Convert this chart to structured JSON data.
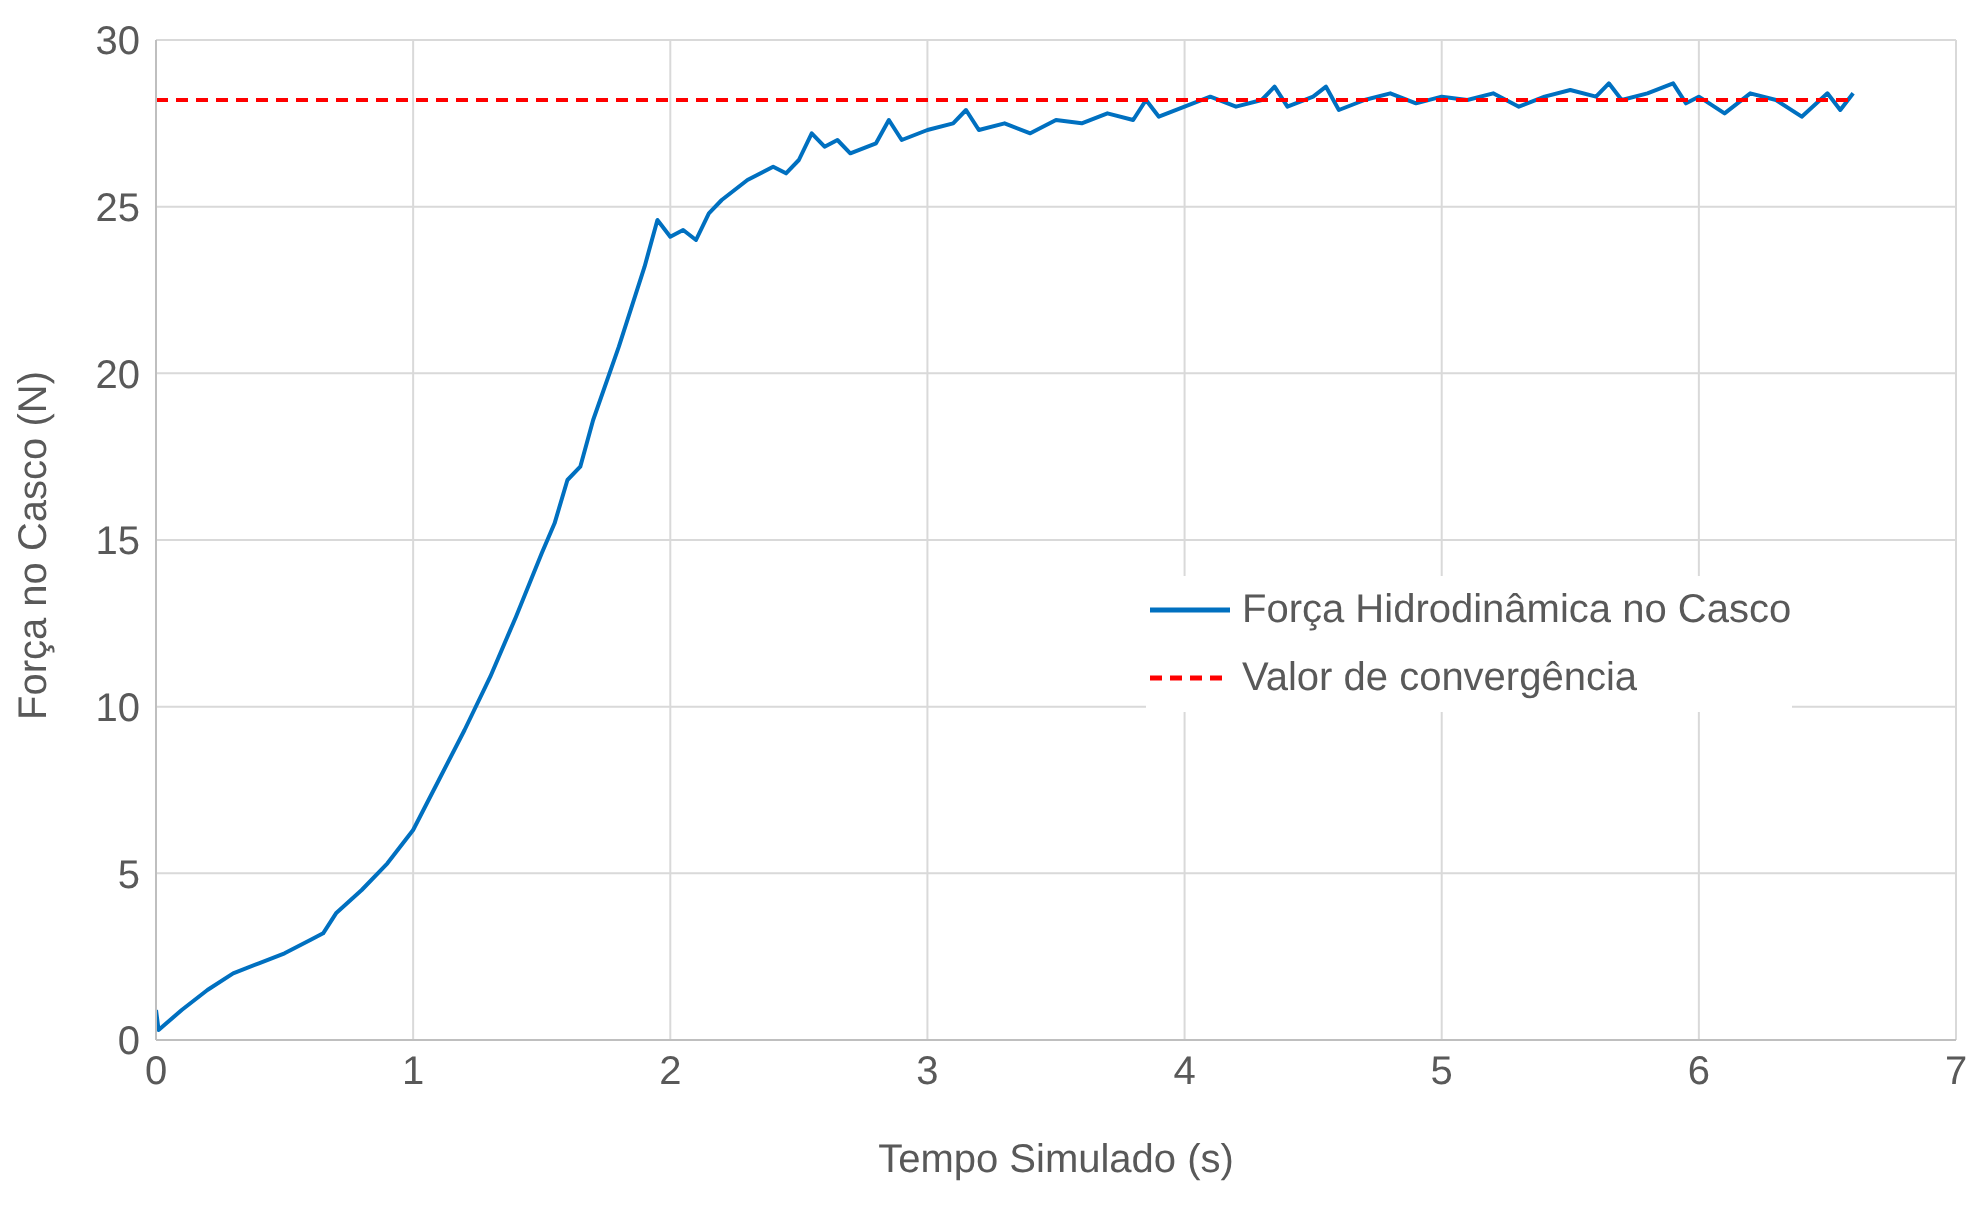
{
  "chart_data": {
    "type": "line",
    "xlabel": "Tempo Simulado (s)",
    "ylabel": "Força no Casco (N)",
    "xlim": [
      0,
      7
    ],
    "xticks": [
      0,
      1,
      2,
      3,
      4,
      5,
      6,
      7
    ],
    "ylim": [
      0,
      30
    ],
    "yticks": [
      0,
      5,
      10,
      15,
      20,
      25,
      30
    ],
    "grid": true,
    "legend": "right",
    "marker": "none",
    "series": [
      {
        "name": "Força Hidrodinâmica no Casco",
        "color": "#0070c0",
        "line_style": "solid",
        "x": [
          0,
          0.01,
          0.1,
          0.2,
          0.3,
          0.4,
          0.5,
          0.6,
          0.65,
          0.7,
          0.8,
          0.9,
          1.0,
          1.1,
          1.2,
          1.3,
          1.4,
          1.5,
          1.55,
          1.6,
          1.65,
          1.7,
          1.8,
          1.9,
          1.95,
          2.0,
          2.05,
          2.1,
          2.15,
          2.2,
          2.3,
          2.4,
          2.45,
          2.5,
          2.55,
          2.6,
          2.65,
          2.7,
          2.8,
          2.85,
          2.9,
          3.0,
          3.1,
          3.15,
          3.2,
          3.3,
          3.4,
          3.5,
          3.6,
          3.7,
          3.8,
          3.85,
          3.9,
          4.0,
          4.1,
          4.2,
          4.3,
          4.35,
          4.4,
          4.5,
          4.55,
          4.6,
          4.7,
          4.8,
          4.9,
          5.0,
          5.1,
          5.2,
          5.3,
          5.4,
          5.5,
          5.6,
          5.65,
          5.7,
          5.8,
          5.9,
          5.95,
          6.0,
          6.1,
          6.2,
          6.3,
          6.4,
          6.5,
          6.55,
          6.6
        ],
        "values": [
          0.9,
          0.3,
          0.9,
          1.5,
          2.0,
          2.3,
          2.6,
          3.0,
          3.2,
          3.8,
          4.5,
          5.3,
          6.3,
          7.8,
          9.3,
          10.9,
          12.7,
          14.6,
          15.5,
          16.8,
          17.2,
          18.6,
          20.8,
          23.2,
          24.6,
          24.1,
          24.3,
          24.0,
          24.8,
          25.2,
          25.8,
          26.2,
          26.0,
          26.4,
          27.2,
          26.8,
          27.0,
          26.6,
          26.9,
          27.6,
          27.0,
          27.3,
          27.5,
          27.9,
          27.3,
          27.5,
          27.2,
          27.6,
          27.5,
          27.8,
          27.6,
          28.2,
          27.7,
          28.0,
          28.3,
          28.0,
          28.2,
          28.6,
          28.0,
          28.3,
          28.6,
          27.9,
          28.2,
          28.4,
          28.1,
          28.3,
          28.2,
          28.4,
          28.0,
          28.3,
          28.5,
          28.3,
          28.7,
          28.2,
          28.4,
          28.7,
          28.1,
          28.3,
          27.8,
          28.4,
          28.2,
          27.7,
          28.4,
          27.9,
          28.4
        ]
      },
      {
        "name": "Valor de convergência",
        "color": "#ff0000",
        "line_style": "dashed",
        "x": [
          0,
          6.6
        ],
        "values": [
          28.2,
          28.2
        ]
      }
    ]
  }
}
